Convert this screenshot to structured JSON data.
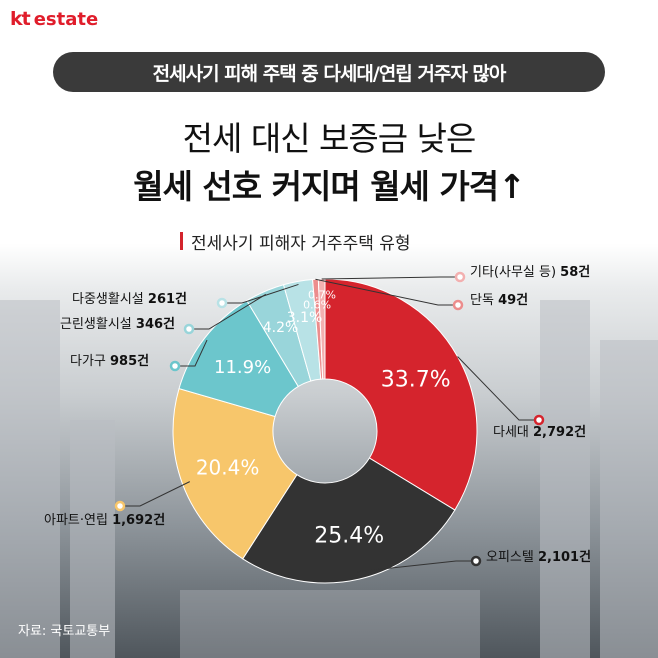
{
  "brand": {
    "mark": "kt",
    "name": "estate"
  },
  "header": {
    "banner": "전세사기 피해 주택 중 다세대/연립 거주자 많아",
    "title_line1": "전세 대신 보증금 낮은",
    "title_line2": "월세 선호 커지며 월세 가격↑"
  },
  "chart_data": {
    "type": "pie",
    "title": "전세사기 피해자 거주주택 유형",
    "categories": [
      "다세대",
      "오피스텔",
      "아파트·연립",
      "다가구",
      "근린생활시설",
      "다중생활시설",
      "단독",
      "기타(사무실 등)"
    ],
    "percent_labels": [
      "33.7%",
      "25.4%",
      "20.4%",
      "11.9%",
      "4.2%",
      "3.1%",
      "0.6%",
      "0.7%"
    ],
    "values": [
      33.7,
      25.4,
      20.4,
      11.9,
      4.2,
      3.1,
      0.6,
      0.7
    ],
    "counts": [
      "2,792건",
      "2,101건",
      "1,692건",
      "985건",
      "346건",
      "261건",
      "49건",
      "58건"
    ],
    "colors": [
      "#d5242d",
      "#333333",
      "#f7c66b",
      "#6cc6cc",
      "#99d5da",
      "#b8e2e6",
      "#ec8d8d",
      "#f3b0b0"
    ]
  },
  "source": "자료: 국토교통부"
}
